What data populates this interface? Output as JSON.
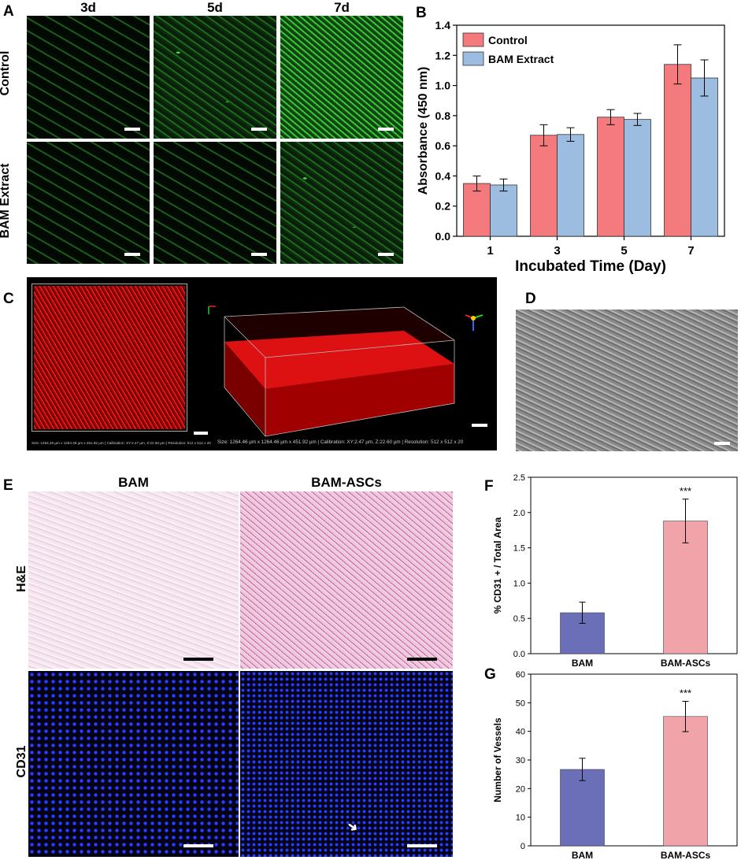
{
  "panel_letters": {
    "a": "A",
    "b": "B",
    "c": "C",
    "d": "D",
    "e": "E",
    "f": "F",
    "g": "G"
  },
  "panel_a": {
    "columns": [
      "3d",
      "5d",
      "7d"
    ],
    "rows": [
      "Control",
      "BAM Extract"
    ]
  },
  "panel_c": {
    "caption_left": "Size: 1264.46 µm x 1264.46 µm x 451.92 µm | Calibration: XY:2.47 µm, Z:22.60 µm | Resolution: 512 x 512 x 20",
    "caption_right": "Size: 1264.46 µm x 1264.46 µm x 451.92 µm | Calibration: XY:2.47 µm, Z:22.60 µm | Resolution: 512 x 512 x 20"
  },
  "panel_e": {
    "columns": [
      "BAM",
      "BAM-ASCs"
    ],
    "rows": [
      "H&E",
      "CD31"
    ]
  },
  "colors": {
    "control": "#f47a7e",
    "bam_extract": "#9cbde0",
    "bam": "#6a6fb7",
    "bam_ascs": "#f0a3a8"
  },
  "chart_data": [
    {
      "id": "B",
      "type": "bar",
      "categories": [
        "1",
        "3",
        "5",
        "7"
      ],
      "series": [
        {
          "name": "Control",
          "values": [
            0.35,
            0.67,
            0.79,
            1.14
          ],
          "errors": [
            0.05,
            0.07,
            0.05,
            0.13
          ]
        },
        {
          "name": "BAM Extract",
          "values": [
            0.34,
            0.675,
            0.775,
            1.05
          ],
          "errors": [
            0.04,
            0.045,
            0.04,
            0.12
          ]
        }
      ],
      "xlabel": "Incubated Time (Day)",
      "ylabel": "Absorbance (450 nm)",
      "ylim": [
        0,
        1.4
      ],
      "yticks": [
        "0.0",
        "0.2",
        "0.4",
        "0.6",
        "0.8",
        "1.0",
        "1.2",
        "1.4"
      ],
      "legend": "top-left"
    },
    {
      "id": "F",
      "type": "bar",
      "categories": [
        "BAM",
        "BAM-ASCs"
      ],
      "values": [
        0.58,
        1.88
      ],
      "errors": [
        0.15,
        0.31
      ],
      "annotations": [
        "",
        "***"
      ],
      "ylabel": "% CD31 + / Total Area",
      "ylim": [
        0,
        2.5
      ],
      "yticks": [
        "0.0",
        "0.5",
        "1.0",
        "1.5",
        "2.0",
        "2.5"
      ]
    },
    {
      "id": "G",
      "type": "bar",
      "categories": [
        "BAM",
        "BAM-ASCs"
      ],
      "values": [
        26.7,
        45.2
      ],
      "errors": [
        3.9,
        5.3
      ],
      "annotations": [
        "",
        "***"
      ],
      "ylabel": "Number of Vessels",
      "ylim": [
        0,
        60
      ],
      "yticks": [
        "0",
        "10",
        "20",
        "30",
        "40",
        "50",
        "60"
      ]
    }
  ]
}
